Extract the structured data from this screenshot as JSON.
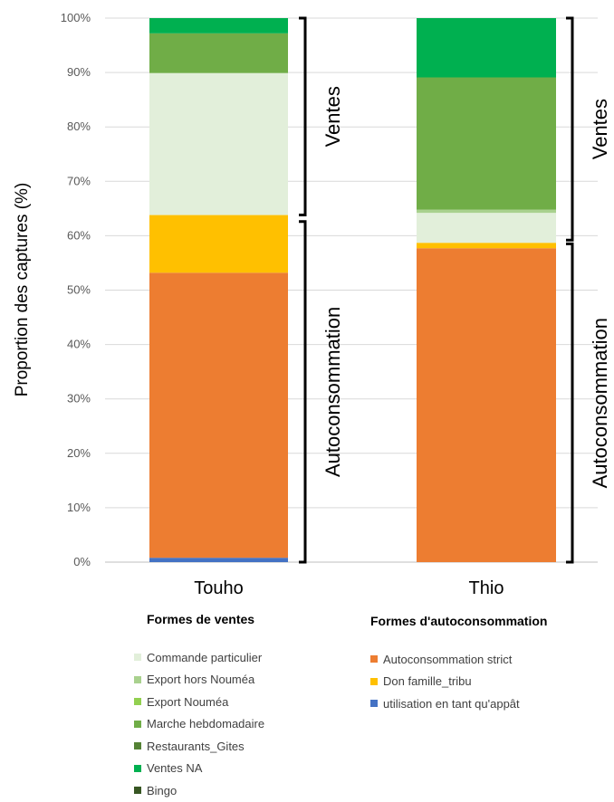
{
  "chart_data": {
    "type": "bar",
    "stacked": true,
    "normalized": true,
    "ylabel": "Proportion des captures (%)",
    "ylim": [
      0,
      100
    ],
    "yticks": [
      "0%",
      "10%",
      "20%",
      "30%",
      "40%",
      "50%",
      "60%",
      "70%",
      "80%",
      "90%",
      "100%"
    ],
    "categories": [
      "Touho",
      "Thio"
    ],
    "series": [
      {
        "name": "utilisation en tant qu'appât",
        "color": "#4472C4",
        "values": [
          0.8,
          0
        ]
      },
      {
        "name": "Autoconsommation strict",
        "color": "#ED7D31",
        "values": [
          52.4,
          57.7
        ]
      },
      {
        "name": "Don famille_tribu",
        "color": "#FFC000",
        "values": [
          10.6,
          1.0
        ]
      },
      {
        "name": "Commande particulier",
        "color": "#E2EFDA",
        "values": [
          26.1,
          5.5
        ]
      },
      {
        "name": "Export hors Nouméa",
        "color": "#A9D18E",
        "values": [
          0,
          0.6
        ]
      },
      {
        "name": "Export Nouméa",
        "color": "#92D050",
        "values": [
          0,
          0
        ]
      },
      {
        "name": "Marche hebdomadaire",
        "color": "#70AD47",
        "values": [
          7.3,
          24.3
        ]
      },
      {
        "name": "Restaurants_Gites",
        "color": "#548235",
        "values": [
          0,
          0
        ]
      },
      {
        "name": "Ventes NA",
        "color": "#00B050",
        "values": [
          2.8,
          10.9
        ]
      },
      {
        "name": "Bingo",
        "color": "#375623",
        "values": [
          0,
          0
        ]
      }
    ],
    "brackets": [
      {
        "label": "Ventes",
        "bar": "Touho",
        "from": 63.8,
        "to": 100
      },
      {
        "label": "Autoconsommation",
        "bar": "Touho",
        "from": 0,
        "to": 62.6
      },
      {
        "label": "Ventes",
        "bar": "Thio",
        "from": 59.2,
        "to": 100
      },
      {
        "label": "Autoconsommation",
        "bar": "Thio",
        "from": 0,
        "to": 58.5
      }
    ]
  },
  "legend_ventes": {
    "title": "Formes de ventes",
    "items": [
      {
        "label": "Commande particulier",
        "color": "#E2EFDA"
      },
      {
        "label": "Export hors Nouméa",
        "color": "#A9D18E"
      },
      {
        "label": "Export Nouméa",
        "color": "#92D050"
      },
      {
        "label": "Marche hebdomadaire",
        "color": "#70AD47"
      },
      {
        "label": "Restaurants_Gites",
        "color": "#548235"
      },
      {
        "label": "Ventes NA",
        "color": "#00B050"
      },
      {
        "label": "Bingo",
        "color": "#375623"
      }
    ]
  },
  "legend_auto": {
    "title": "Formes d'autoconsommation",
    "items": [
      {
        "label": "Autoconsommation strict",
        "color": "#ED7D31"
      },
      {
        "label": "Don famille_tribu",
        "color": "#FFC000"
      },
      {
        "label": "utilisation en tant qu'appât",
        "color": "#4472C4"
      }
    ]
  }
}
